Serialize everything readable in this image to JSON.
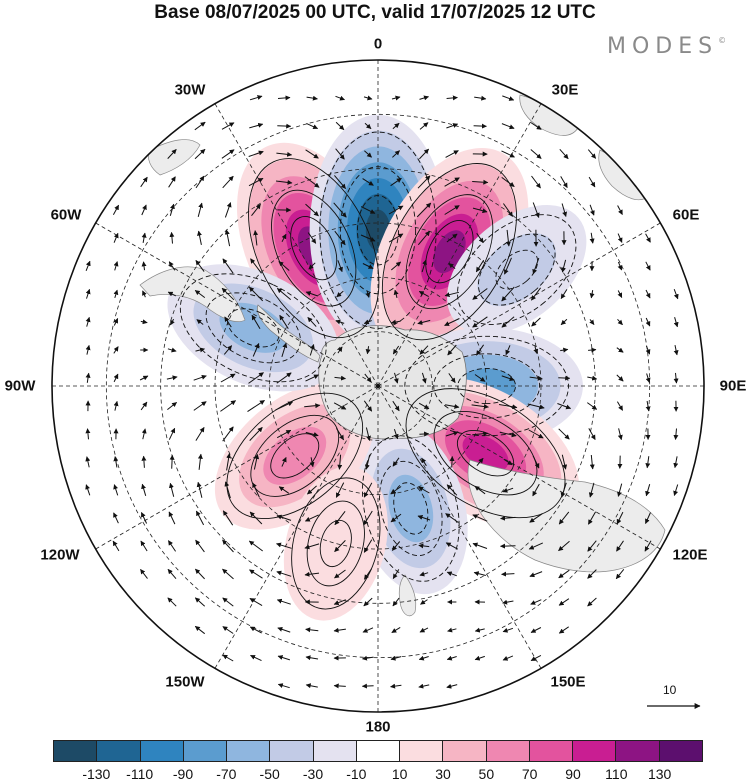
{
  "title": "Base 08/07/2025 00 UTC, valid 17/07/2025 12 UTC",
  "brand": "MODES",
  "brand_mark": "©",
  "longitude_labels": {
    "top": "0",
    "top_right": "30E",
    "right_upper": "60E",
    "right": "90E",
    "right_lower": "120E",
    "bottom_right": "150E",
    "bottom": "180",
    "bottom_left": "150W",
    "left_lower": "120W",
    "left": "90W",
    "left_upper": "60W",
    "top_left": "30W"
  },
  "reference_vector": "10",
  "colorbar": {
    "colors": [
      "#1d4a66",
      "#1f6593",
      "#2f84bf",
      "#5b9ccf",
      "#8fb6df",
      "#c2cbe6",
      "#e4e2f0",
      "#ffffff",
      "#fbdde0",
      "#f6b5c4",
      "#ef87b1",
      "#e3539e",
      "#c91e92",
      "#8d1483",
      "#5c0f6e"
    ],
    "ticks": [
      "-130",
      "-110",
      "-90",
      "-70",
      "-50",
      "-30",
      "-10",
      "10",
      "30",
      "50",
      "70",
      "90",
      "110",
      "130"
    ]
  },
  "map": {
    "projection": "south-polar-stereographic",
    "field": "geopotential height anomaly with wind vectors",
    "anomaly_centers": [
      {
        "lon": -25,
        "lat": -48,
        "value": 120
      },
      {
        "lon": 0,
        "lat": -47,
        "value": -130
      },
      {
        "lon": 28,
        "lat": -48,
        "value": 120
      },
      {
        "lon": 50,
        "lat": -40,
        "value": -30
      },
      {
        "lon": 90,
        "lat": -60,
        "value": -75
      },
      {
        "lon": 122,
        "lat": -55,
        "value": 95
      },
      {
        "lon": 165,
        "lat": -55,
        "value": -50
      },
      {
        "lon": -130,
        "lat": -60,
        "value": 65
      },
      {
        "lon": -65,
        "lat": -52,
        "value": -60
      },
      {
        "lon": -165,
        "lat": -45,
        "value": 25
      }
    ]
  }
}
